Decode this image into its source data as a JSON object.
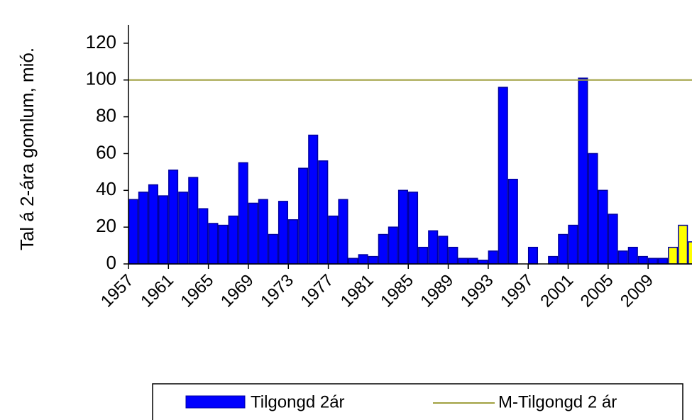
{
  "chart_data": {
    "type": "bar",
    "y_label": "Tal á 2-ára gomlum, mió.",
    "categories": [
      "1957",
      null,
      null,
      null,
      "1961",
      null,
      null,
      null,
      "1965",
      null,
      null,
      null,
      "1969",
      null,
      null,
      null,
      "1973",
      null,
      null,
      null,
      "1977",
      null,
      null,
      null,
      "1981",
      null,
      null,
      null,
      "1985",
      null,
      null,
      null,
      "1989",
      null,
      null,
      null,
      "1993",
      null,
      null,
      null,
      "1997",
      null,
      null,
      null,
      "2001",
      null,
      null,
      null,
      "2005",
      null,
      null,
      null,
      "2009",
      null,
      null,
      null,
      null
    ],
    "series": [
      {
        "name": "Tilgongd 2ár",
        "color": "#0000ff",
        "values": [
          35,
          39,
          43,
          37,
          51,
          39,
          47,
          30,
          22,
          21,
          26,
          55,
          33,
          35,
          16,
          34,
          24,
          52,
          70,
          56,
          26,
          35,
          3,
          5,
          4,
          16,
          20,
          40,
          39,
          9,
          18,
          15,
          9,
          3,
          3,
          2,
          7,
          96,
          46,
          0,
          9,
          0,
          4,
          16,
          21,
          101,
          60,
          40,
          27,
          7,
          9,
          4,
          3,
          3,
          9,
          21,
          12
        ],
        "colors": [
          "#0000ff",
          "#0000ff",
          "#0000ff",
          "#0000ff",
          "#0000ff",
          "#0000ff",
          "#0000ff",
          "#0000ff",
          "#0000ff",
          "#0000ff",
          "#0000ff",
          "#0000ff",
          "#0000ff",
          "#0000ff",
          "#0000ff",
          "#0000ff",
          "#0000ff",
          "#0000ff",
          "#0000ff",
          "#0000ff",
          "#0000ff",
          "#0000ff",
          "#0000ff",
          "#0000ff",
          "#0000ff",
          "#0000ff",
          "#0000ff",
          "#0000ff",
          "#0000ff",
          "#0000ff",
          "#0000ff",
          "#0000ff",
          "#0000ff",
          "#0000ff",
          "#0000ff",
          "#0000ff",
          "#0000ff",
          "#0000ff",
          "#0000ff",
          "#0000ff",
          "#0000ff",
          "#0000ff",
          "#0000ff",
          "#0000ff",
          "#0000ff",
          "#0000ff",
          "#0000ff",
          "#0000ff",
          "#0000ff",
          "#0000ff",
          "#0000ff",
          "#0000ff",
          "#0000ff",
          "#0000ff",
          "#ffff00",
          "#ffff00",
          "#ffff00"
        ]
      },
      {
        "name": "M-Tilgongd 2 ár",
        "color": "#a0a040",
        "type": "line",
        "value": 100
      }
    ],
    "ylim": [
      0,
      130
    ],
    "yticks": [
      0,
      20,
      40,
      60,
      80,
      100,
      120
    ]
  }
}
